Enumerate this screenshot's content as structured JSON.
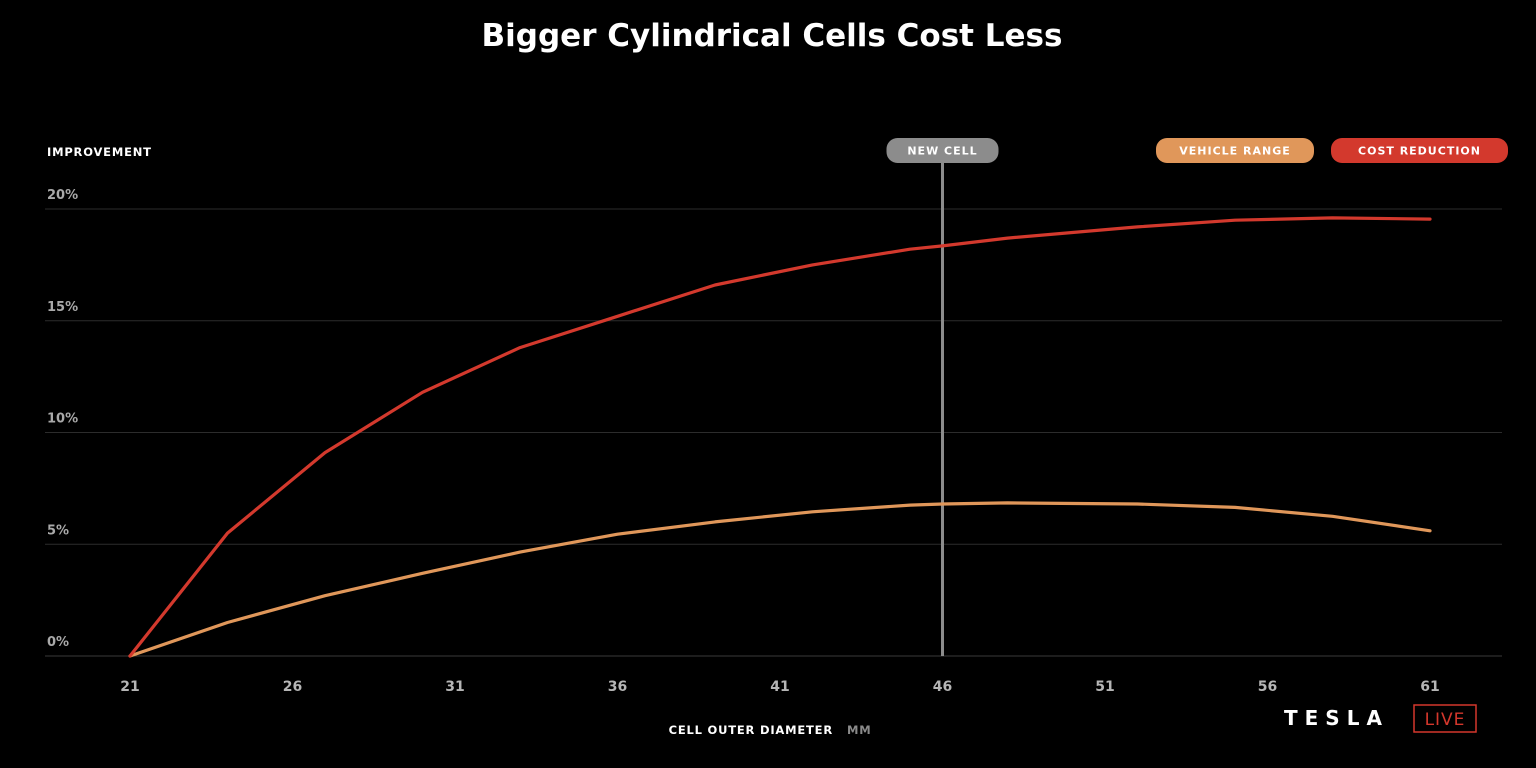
{
  "chart_data": {
    "type": "line",
    "title": "Bigger Cylindrical Cells Cost Less",
    "ylabel": "IMPROVEMENT",
    "xlabel": "CELL OUTER DIAMETER",
    "xunit": "MM",
    "ylim": [
      0,
      20
    ],
    "xlim": [
      21,
      61
    ],
    "yticks": [
      {
        "value": 0,
        "label": "0%"
      },
      {
        "value": 5,
        "label": "5%"
      },
      {
        "value": 10,
        "label": "10%"
      },
      {
        "value": 15,
        "label": "15%"
      },
      {
        "value": 20,
        "label": "20%"
      }
    ],
    "xticks": [
      21,
      26,
      31,
      36,
      41,
      46,
      51,
      56,
      61
    ],
    "grid": true,
    "legend_position": "top-right",
    "marker": {
      "x": 46,
      "label": "NEW CELL",
      "color": "#8c8c8c"
    },
    "series": [
      {
        "name": "VEHICLE RANGE",
        "color": "#e0975a",
        "x": [
          21,
          24,
          27,
          30,
          33,
          36,
          39,
          42,
          45,
          46,
          48,
          52,
          55,
          58,
          61
        ],
        "values": [
          0,
          1.5,
          2.7,
          3.7,
          4.65,
          5.45,
          6.0,
          6.45,
          6.75,
          6.8,
          6.85,
          6.8,
          6.65,
          6.25,
          5.6
        ]
      },
      {
        "name": "COST REDUCTION",
        "color": "#d3392d",
        "x": [
          21,
          24,
          27,
          30,
          33,
          36,
          39,
          42,
          45,
          46,
          48,
          52,
          55,
          58,
          61
        ],
        "values": [
          0,
          5.5,
          9.1,
          11.8,
          13.8,
          15.2,
          16.6,
          17.5,
          18.2,
          18.35,
          18.7,
          19.2,
          19.5,
          19.6,
          19.55
        ]
      }
    ]
  },
  "brand": {
    "name": "TESLA",
    "tag": "LIVE"
  }
}
